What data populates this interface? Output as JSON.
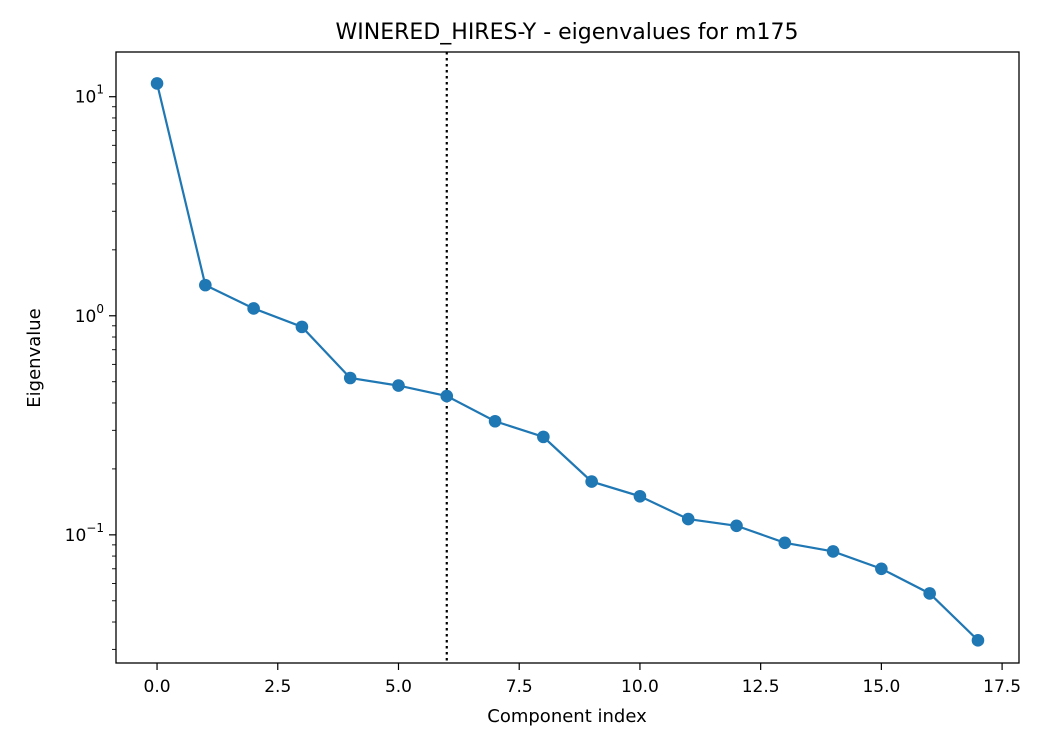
{
  "chart_data": {
    "type": "line",
    "title": "WINERED_HIRES-Y - eigenvalues for m175",
    "xlabel": "Component index",
    "ylabel": "Eigenvalue",
    "yscale": "log",
    "xlim": [
      -0.85,
      17.85
    ],
    "ylim": [
      0.026,
      16
    ],
    "grid": false,
    "x_ticks": [
      {
        "value": 0.0,
        "label": "0.0"
      },
      {
        "value": 2.5,
        "label": "2.5"
      },
      {
        "value": 5.0,
        "label": "5.0"
      },
      {
        "value": 7.5,
        "label": "7.5"
      },
      {
        "value": 10.0,
        "label": "10.0"
      },
      {
        "value": 12.5,
        "label": "12.5"
      },
      {
        "value": 15.0,
        "label": "15.0"
      },
      {
        "value": 17.5,
        "label": "17.5"
      }
    ],
    "y_ticks": [
      {
        "value": 10,
        "base": "10",
        "exp": "1"
      },
      {
        "value": 1,
        "base": "10",
        "exp": "0"
      },
      {
        "value": 0.1,
        "base": "10",
        "exp": "−1"
      }
    ],
    "vline": {
      "x": 6,
      "style": "dotted",
      "color": "#000000"
    },
    "series": [
      {
        "color": "#1f77b4",
        "x": [
          0,
          1,
          2,
          3,
          4,
          5,
          6,
          7,
          8,
          9,
          10,
          11,
          12,
          13,
          14,
          15,
          16,
          17
        ],
        "y": [
          11.5,
          1.38,
          1.08,
          0.89,
          0.52,
          0.48,
          0.43,
          0.33,
          0.28,
          0.175,
          0.15,
          0.118,
          0.11,
          0.092,
          0.084,
          0.07,
          0.054,
          0.033
        ]
      }
    ]
  }
}
